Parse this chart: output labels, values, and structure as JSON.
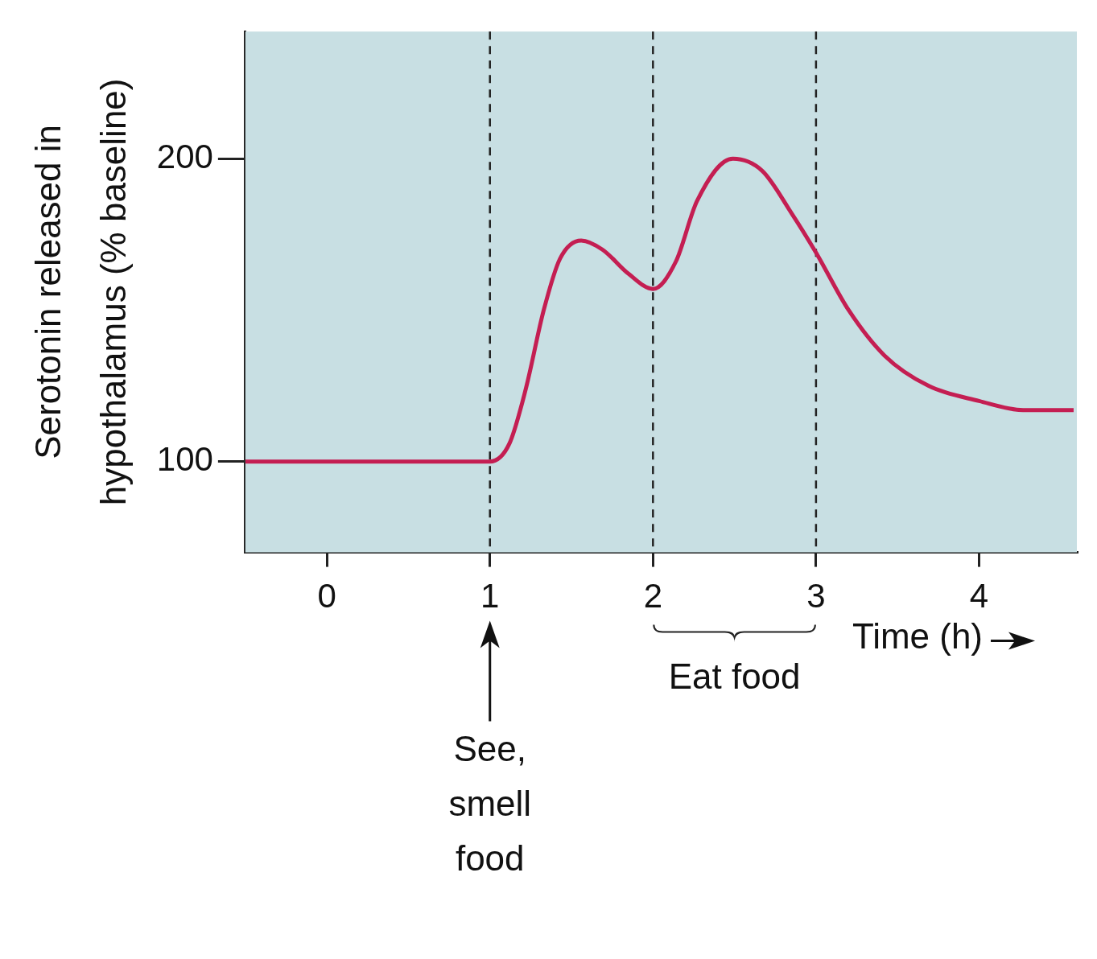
{
  "chart_data": {
    "type": "line",
    "xlabel": "Time (h)",
    "ylabel": "Serotonin released in\nhypothalamus (% baseline)",
    "x": [
      -0.5,
      1.0,
      1.12,
      1.22,
      1.33,
      1.43,
      1.56,
      1.69,
      1.85,
      2.0,
      2.14,
      2.27,
      2.49,
      2.67,
      2.85,
      3.0,
      3.2,
      3.42,
      3.69,
      4.0,
      4.27,
      4.58
    ],
    "series": [
      {
        "color": "#c41e52",
        "values": [
          100,
          100,
          106,
          124,
          150,
          167,
          173,
          170,
          162,
          157,
          166,
          186,
          200,
          196,
          182,
          169,
          150,
          135,
          125,
          120,
          117,
          117
        ]
      }
    ],
    "xlim": [
      -0.5,
      4.6
    ],
    "xticks": [
      0,
      1,
      2,
      3,
      4
    ],
    "ylim": [
      70,
      242
    ],
    "yticks": [
      100,
      200
    ],
    "grid": false,
    "legend": false,
    "marker": "none",
    "line_style": "solid",
    "ref_lines": [
      {
        "axis": "x",
        "value": 1,
        "line_style": "dashed",
        "color": "#222222"
      },
      {
        "axis": "x",
        "value": 2,
        "line_style": "dashed",
        "color": "#222222"
      },
      {
        "axis": "x",
        "value": 3,
        "line_style": "dashed",
        "color": "#222222"
      }
    ],
    "annotations": [
      "See, smell food",
      "Eat food"
    ]
  }
}
